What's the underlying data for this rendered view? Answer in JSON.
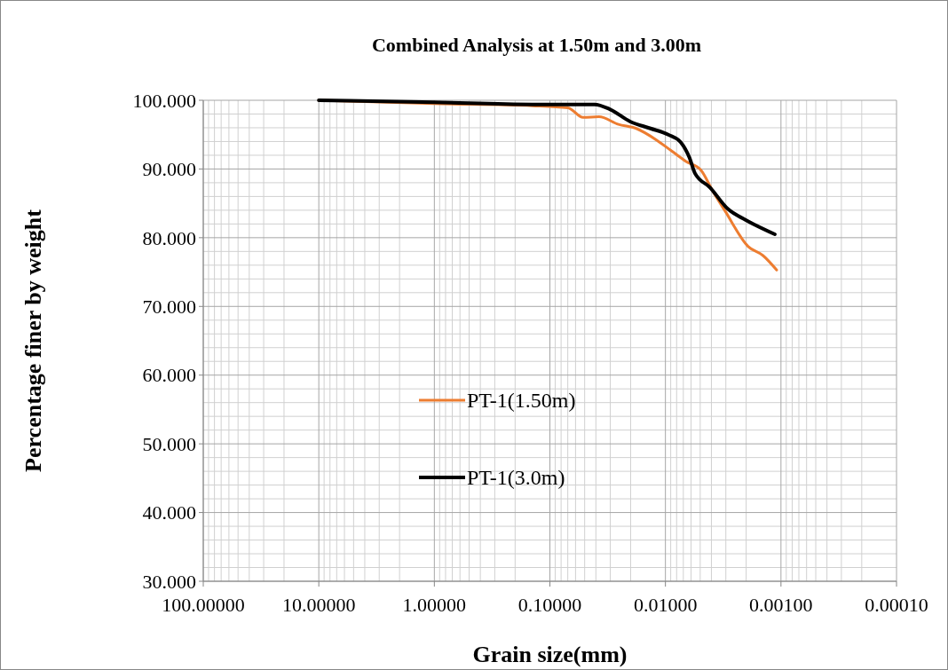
{
  "chart_data": {
    "type": "line",
    "title": "Combined Analysis at 1.50m and 3.00m",
    "xlabel": "Grain size(mm)",
    "ylabel": "Percentage finer by weight",
    "log": "x",
    "xlim": [
      100,
      0.0001
    ],
    "xticks": [
      {
        "value": 100,
        "label": "100.00000"
      },
      {
        "value": 10,
        "label": "10.00000"
      },
      {
        "value": 1,
        "label": "1.00000"
      },
      {
        "value": 0.1,
        "label": "0.10000"
      },
      {
        "value": 0.01,
        "label": "0.01000"
      },
      {
        "value": 0.001,
        "label": "0.00100"
      },
      {
        "value": 0.0001,
        "label": "0.00010"
      }
    ],
    "ylim": [
      30,
      100
    ],
    "yticks": [
      {
        "value": 30,
        "label": "30.000"
      },
      {
        "value": 40,
        "label": "40.000"
      },
      {
        "value": 50,
        "label": "50.000"
      },
      {
        "value": 60,
        "label": "60.000"
      },
      {
        "value": 70,
        "label": "70.000"
      },
      {
        "value": 80,
        "label": "80.000"
      },
      {
        "value": 90,
        "label": "90.000"
      },
      {
        "value": 100,
        "label": "100.000"
      }
    ],
    "grid": true,
    "legend": "center",
    "marker": "none",
    "series": [
      {
        "name": "PT-1(1.50m)",
        "color": "#ed7d31",
        "x": [
          10,
          1,
          0.142,
          0.0697,
          0.0516,
          0.0376,
          0.0255,
          0.0179,
          0.0119,
          0.00881,
          0.00663,
          0.00491,
          0.0039,
          0.00305,
          0.00192,
          0.00143,
          0.00109
        ],
        "values": [
          100,
          99.5,
          99.2,
          98.9,
          97.5,
          97.6,
          96.5,
          95.9,
          94.2,
          92.6,
          91.1,
          89.8,
          86.8,
          83.9,
          78.7,
          77.4,
          75.3
        ]
      },
      {
        "name": "PT-1(3.0m)",
        "color": "#000000",
        "x": [
          10,
          1,
          0.142,
          0.041,
          0.0303,
          0.0202,
          0.01346,
          0.00945,
          0.00738,
          0.00618,
          0.00556,
          0.00411,
          0.00289,
          0.00203,
          0.00113
        ],
        "values": [
          100,
          99.7,
          99.4,
          99.4,
          98.7,
          96.9,
          95.9,
          95.0,
          93.9,
          91.6,
          89.4,
          87.3,
          84.2,
          82.6,
          80.5
        ]
      }
    ]
  }
}
